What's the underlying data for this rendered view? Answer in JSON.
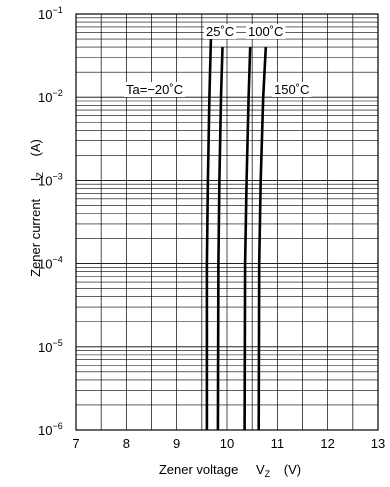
{
  "chart_data": {
    "type": "line",
    "title": "",
    "xlabel": {
      "main": "Zener voltage",
      "var": "V",
      "sub": "Z",
      "unit": "(V)"
    },
    "ylabel": {
      "main": "Zener current",
      "var": "I",
      "sub": "Z",
      "unit": "(A)"
    },
    "xlim": [
      7,
      13
    ],
    "ylim": [
      1e-06,
      0.1
    ],
    "yscale": "log",
    "grid": true,
    "x_ticks": [
      "7",
      "8",
      "9",
      "10",
      "11",
      "12",
      "13"
    ],
    "y_ticks": [
      {
        "base": "10",
        "exp": "−6"
      },
      {
        "base": "10",
        "exp": "−5"
      },
      {
        "base": "10",
        "exp": "−4"
      },
      {
        "base": "10",
        "exp": "−3"
      },
      {
        "base": "10",
        "exp": "−2"
      },
      {
        "base": "10",
        "exp": "−1"
      }
    ],
    "series": [
      {
        "name": "Ta=−20˚C",
        "x": [
          9.6,
          9.6,
          9.62,
          9.65,
          9.68
        ],
        "y": [
          1e-06,
          0.0001,
          0.001,
          0.01,
          0.05
        ]
      },
      {
        "name": "25˚C",
        "x": [
          9.82,
          9.83,
          9.85,
          9.88,
          9.91
        ],
        "y": [
          1e-06,
          0.0001,
          0.001,
          0.01,
          0.04
        ]
      },
      {
        "name": "100˚C",
        "x": [
          10.35,
          10.36,
          10.39,
          10.43,
          10.46
        ],
        "y": [
          1e-06,
          0.0001,
          0.001,
          0.01,
          0.04
        ]
      },
      {
        "name": "150˚C",
        "x": [
          10.63,
          10.64,
          10.67,
          10.72,
          10.77
        ],
        "y": [
          1e-06,
          0.0001,
          0.001,
          0.01,
          0.04
        ]
      }
    ],
    "annotations": [
      "25˚C",
      "100˚C",
      "Ta=−20˚C",
      "150˚C"
    ]
  }
}
